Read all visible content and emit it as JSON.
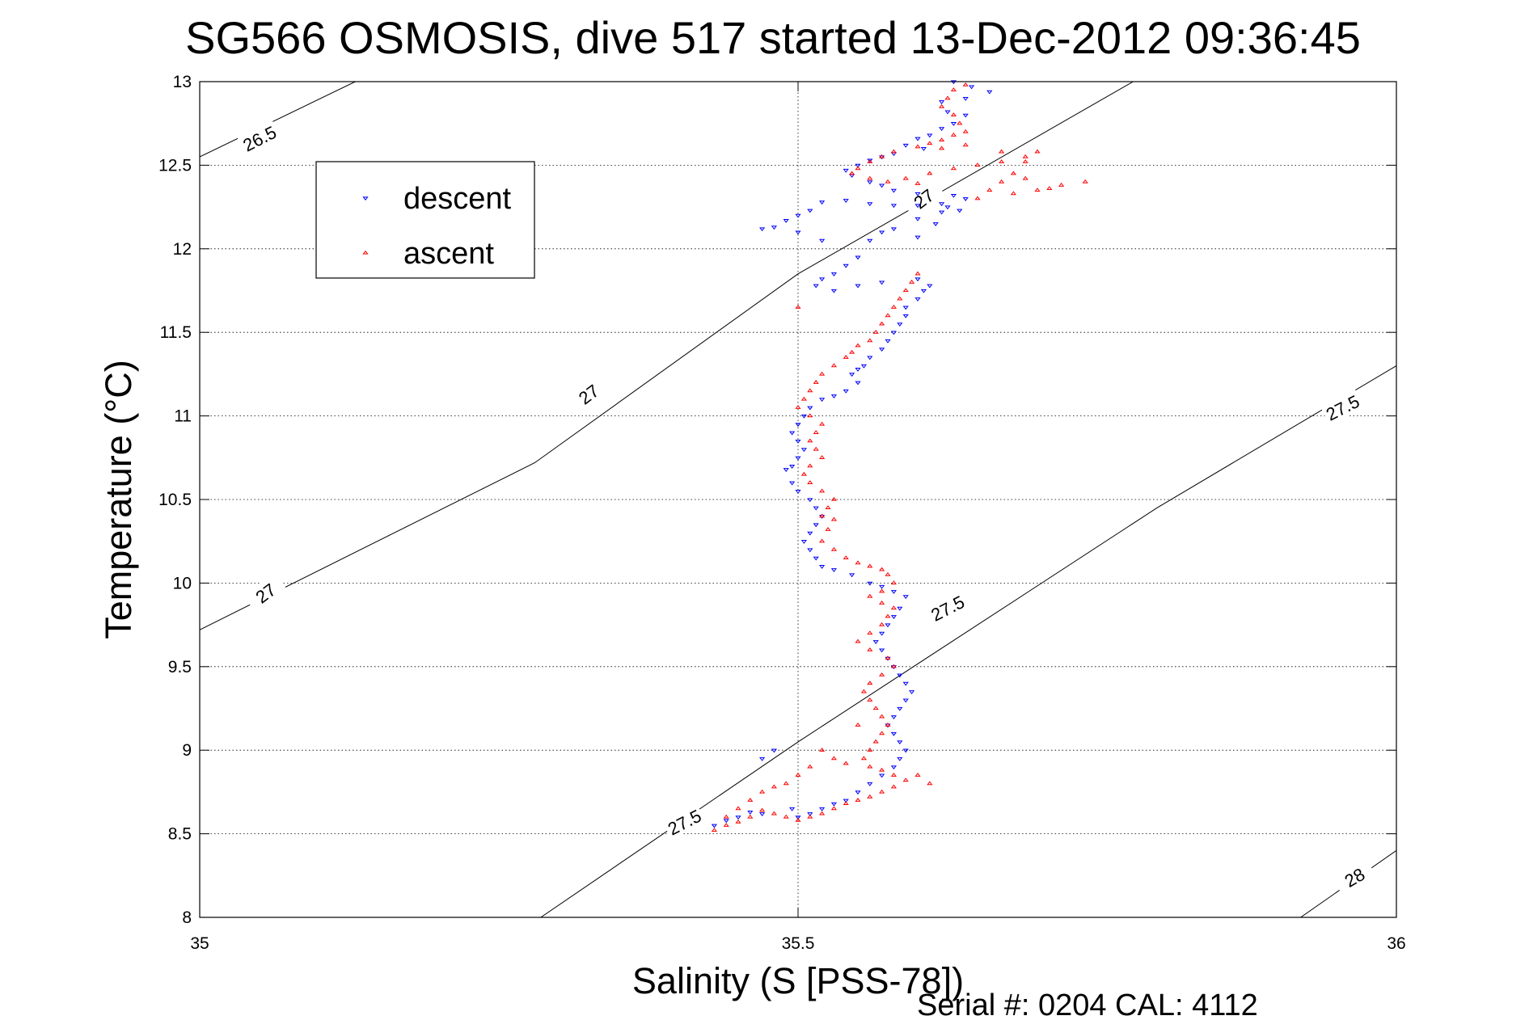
{
  "chart_data": {
    "type": "scatter",
    "title": "SG566 OSMOSIS, dive 517 started 13-Dec-2012 09:36:45",
    "xlabel": "Salinity (S [PSS-78])",
    "ylabel": "Temperature (°C)",
    "xlim": [
      35,
      36
    ],
    "ylim": [
      8,
      13
    ],
    "xticks": [
      "35",
      "35.5",
      "36"
    ],
    "yticks": [
      "8",
      "8.5",
      "9",
      "9.5",
      "10",
      "10.5",
      "11",
      "11.5",
      "12",
      "12.5",
      "13"
    ],
    "grid": true,
    "legend": {
      "placement": "top-left",
      "entries": [
        "descent",
        "ascent"
      ]
    },
    "footer": "Serial #: 0204  CAL: 4112",
    "density_contours": [
      {
        "label": "26.5",
        "points": [
          [
            35.0,
            12.55
          ],
          [
            35.13,
            13.0
          ]
        ]
      },
      {
        "label": "27",
        "points": [
          [
            35.0,
            9.72
          ],
          [
            35.28,
            10.72
          ],
          [
            35.5,
            11.85
          ],
          [
            35.78,
            13.0
          ]
        ]
      },
      {
        "label": "27.5",
        "points": [
          [
            35.285,
            8.0
          ],
          [
            35.5,
            9.05
          ],
          [
            35.8,
            10.45
          ],
          [
            36.0,
            11.3
          ]
        ]
      },
      {
        "label": "28",
        "points": [
          [
            35.92,
            8.0
          ],
          [
            36.0,
            8.4
          ]
        ]
      }
    ],
    "contour_label_positions": [
      {
        "label": "26.5",
        "x": 35.05,
        "y": 12.66,
        "angle": -27
      },
      {
        "label": "27",
        "x": 35.325,
        "y": 11.13,
        "angle": -37
      },
      {
        "label": "27",
        "x": 35.055,
        "y": 9.94,
        "angle": -37
      },
      {
        "label": "27",
        "x": 35.605,
        "y": 12.3,
        "angle": -37
      },
      {
        "label": "27.5",
        "x": 35.625,
        "y": 9.85,
        "angle": -27
      },
      {
        "label": "27.5",
        "x": 35.955,
        "y": 11.05,
        "angle": -27
      },
      {
        "label": "27.5",
        "x": 35.405,
        "y": 8.57,
        "angle": -27
      },
      {
        "label": "28",
        "x": 35.965,
        "y": 8.24,
        "angle": -30
      }
    ],
    "series": [
      {
        "name": "descent",
        "color": "#0000ff",
        "marker": "triangle-down",
        "values": [
          [
            35.63,
            13.0
          ],
          [
            35.645,
            12.97
          ],
          [
            35.66,
            12.94
          ],
          [
            35.64,
            12.9
          ],
          [
            35.62,
            12.88
          ],
          [
            35.625,
            12.82
          ],
          [
            35.64,
            12.8
          ],
          [
            35.63,
            12.75
          ],
          [
            35.62,
            12.72
          ],
          [
            35.61,
            12.68
          ],
          [
            35.6,
            12.66
          ],
          [
            35.59,
            12.62
          ],
          [
            35.605,
            12.6
          ],
          [
            35.58,
            12.57
          ],
          [
            35.57,
            12.55
          ],
          [
            35.56,
            12.53
          ],
          [
            35.55,
            12.5
          ],
          [
            35.54,
            12.47
          ],
          [
            35.545,
            12.44
          ],
          [
            35.56,
            12.4
          ],
          [
            35.57,
            12.38
          ],
          [
            35.58,
            12.35
          ],
          [
            35.6,
            12.33
          ],
          [
            35.63,
            12.32
          ],
          [
            35.64,
            12.3
          ],
          [
            35.62,
            12.27
          ],
          [
            35.6,
            12.26
          ],
          [
            35.58,
            12.26
          ],
          [
            35.56,
            12.27
          ],
          [
            35.54,
            12.29
          ],
          [
            35.52,
            12.28
          ],
          [
            35.51,
            12.23
          ],
          [
            35.5,
            12.2
          ],
          [
            35.49,
            12.17
          ],
          [
            35.48,
            12.13
          ],
          [
            35.47,
            12.12
          ],
          [
            35.5,
            12.1
          ],
          [
            35.52,
            12.05
          ],
          [
            35.6,
            12.18
          ],
          [
            35.615,
            12.15
          ],
          [
            35.62,
            12.22
          ],
          [
            35.625,
            12.25
          ],
          [
            35.635,
            12.23
          ],
          [
            35.58,
            12.12
          ],
          [
            35.57,
            12.1
          ],
          [
            35.56,
            12.05
          ],
          [
            35.55,
            11.95
          ],
          [
            35.54,
            11.9
          ],
          [
            35.53,
            11.85
          ],
          [
            35.52,
            11.82
          ],
          [
            35.515,
            11.78
          ],
          [
            35.53,
            11.75
          ],
          [
            35.55,
            11.78
          ],
          [
            35.57,
            11.8
          ],
          [
            35.6,
            11.82
          ],
          [
            35.61,
            11.78
          ],
          [
            35.605,
            11.75
          ],
          [
            35.6,
            11.7
          ],
          [
            35.59,
            11.65
          ],
          [
            35.59,
            11.6
          ],
          [
            35.585,
            11.55
          ],
          [
            35.58,
            11.5
          ],
          [
            35.575,
            11.45
          ],
          [
            35.57,
            11.4
          ],
          [
            35.56,
            11.35
          ],
          [
            35.555,
            11.3
          ],
          [
            35.55,
            11.28
          ],
          [
            35.545,
            11.25
          ],
          [
            35.55,
            11.2
          ],
          [
            35.54,
            11.15
          ],
          [
            35.53,
            11.12
          ],
          [
            35.52,
            11.1
          ],
          [
            35.51,
            11.05
          ],
          [
            35.505,
            11.0
          ],
          [
            35.5,
            10.95
          ],
          [
            35.495,
            10.9
          ],
          [
            35.5,
            10.85
          ],
          [
            35.505,
            10.8
          ],
          [
            35.5,
            10.75
          ],
          [
            35.495,
            10.7
          ],
          [
            35.49,
            10.68
          ],
          [
            35.495,
            10.6
          ],
          [
            35.5,
            10.55
          ],
          [
            35.51,
            10.5
          ],
          [
            35.515,
            10.45
          ],
          [
            35.52,
            10.4
          ],
          [
            35.515,
            10.35
          ],
          [
            35.51,
            10.3
          ],
          [
            35.505,
            10.25
          ],
          [
            35.51,
            10.2
          ],
          [
            35.515,
            10.15
          ],
          [
            35.52,
            10.1
          ],
          [
            35.53,
            10.08
          ],
          [
            35.545,
            10.05
          ],
          [
            35.56,
            10.0
          ],
          [
            35.57,
            9.98
          ],
          [
            35.58,
            9.95
          ],
          [
            35.59,
            9.92
          ],
          [
            35.585,
            9.85
          ],
          [
            35.58,
            9.8
          ],
          [
            35.575,
            9.75
          ],
          [
            35.57,
            9.7
          ],
          [
            35.565,
            9.65
          ],
          [
            35.57,
            9.6
          ],
          [
            35.575,
            9.55
          ],
          [
            35.58,
            9.5
          ],
          [
            35.585,
            9.45
          ],
          [
            35.59,
            9.4
          ],
          [
            35.595,
            9.35
          ],
          [
            35.59,
            9.3
          ],
          [
            35.585,
            9.25
          ],
          [
            35.58,
            9.2
          ],
          [
            35.575,
            9.15
          ],
          [
            35.58,
            9.1
          ],
          [
            35.585,
            9.05
          ],
          [
            35.59,
            9.0
          ],
          [
            35.585,
            8.95
          ],
          [
            35.58,
            8.9
          ],
          [
            35.57,
            8.85
          ],
          [
            35.56,
            8.8
          ],
          [
            35.55,
            8.75
          ],
          [
            35.54,
            8.7
          ],
          [
            35.53,
            8.68
          ],
          [
            35.52,
            8.65
          ],
          [
            35.51,
            8.62
          ],
          [
            35.5,
            8.6
          ],
          [
            35.495,
            8.65
          ],
          [
            35.47,
            8.62
          ],
          [
            35.45,
            8.6
          ],
          [
            35.44,
            8.58
          ],
          [
            35.43,
            8.55
          ],
          [
            35.46,
            8.63
          ],
          [
            35.48,
            9.0
          ],
          [
            35.47,
            8.95
          ],
          [
            35.6,
            12.07
          ]
        ]
      },
      {
        "name": "ascent",
        "color": "#ff0000",
        "marker": "triangle-up",
        "values": [
          [
            35.64,
            12.98
          ],
          [
            35.63,
            12.95
          ],
          [
            35.625,
            12.9
          ],
          [
            35.62,
            12.85
          ],
          [
            35.63,
            12.8
          ],
          [
            35.635,
            12.75
          ],
          [
            35.64,
            12.7
          ],
          [
            35.63,
            12.68
          ],
          [
            35.62,
            12.65
          ],
          [
            35.61,
            12.63
          ],
          [
            35.6,
            12.61
          ],
          [
            35.58,
            12.58
          ],
          [
            35.57,
            12.55
          ],
          [
            35.56,
            12.52
          ],
          [
            35.55,
            12.48
          ],
          [
            35.545,
            12.45
          ],
          [
            35.56,
            12.42
          ],
          [
            35.575,
            12.4
          ],
          [
            35.59,
            12.42
          ],
          [
            35.61,
            12.45
          ],
          [
            35.63,
            12.48
          ],
          [
            35.65,
            12.5
          ],
          [
            35.67,
            12.52
          ],
          [
            35.69,
            12.55
          ],
          [
            35.7,
            12.58
          ],
          [
            35.69,
            12.52
          ],
          [
            35.68,
            12.45
          ],
          [
            35.67,
            12.4
          ],
          [
            35.66,
            12.35
          ],
          [
            35.68,
            12.33
          ],
          [
            35.7,
            12.35
          ],
          [
            35.72,
            12.38
          ],
          [
            35.74,
            12.4
          ],
          [
            35.71,
            12.36
          ],
          [
            35.69,
            12.42
          ],
          [
            35.62,
            12.6
          ],
          [
            35.64,
            12.62
          ],
          [
            35.67,
            12.58
          ],
          [
            35.6,
            11.85
          ],
          [
            35.595,
            11.8
          ],
          [
            35.59,
            11.75
          ],
          [
            35.585,
            11.7
          ],
          [
            35.58,
            11.65
          ],
          [
            35.575,
            11.6
          ],
          [
            35.57,
            11.55
          ],
          [
            35.565,
            11.5
          ],
          [
            35.56,
            11.45
          ],
          [
            35.55,
            11.42
          ],
          [
            35.545,
            11.38
          ],
          [
            35.54,
            11.35
          ],
          [
            35.53,
            11.3
          ],
          [
            35.52,
            11.25
          ],
          [
            35.515,
            11.2
          ],
          [
            35.51,
            11.15
          ],
          [
            35.505,
            11.1
          ],
          [
            35.5,
            11.05
          ],
          [
            35.51,
            11.0
          ],
          [
            35.52,
            10.95
          ],
          [
            35.515,
            10.9
          ],
          [
            35.51,
            10.85
          ],
          [
            35.515,
            10.8
          ],
          [
            35.52,
            10.75
          ],
          [
            35.51,
            10.7
          ],
          [
            35.505,
            10.65
          ],
          [
            35.51,
            10.6
          ],
          [
            35.52,
            10.55
          ],
          [
            35.53,
            10.5
          ],
          [
            35.525,
            10.45
          ],
          [
            35.52,
            10.4
          ],
          [
            35.53,
            10.38
          ],
          [
            35.525,
            10.32
          ],
          [
            35.52,
            10.25
          ],
          [
            35.53,
            10.2
          ],
          [
            35.54,
            10.15
          ],
          [
            35.55,
            10.12
          ],
          [
            35.56,
            10.1
          ],
          [
            35.57,
            10.08
          ],
          [
            35.575,
            10.05
          ],
          [
            35.58,
            10.0
          ],
          [
            35.57,
            9.95
          ],
          [
            35.56,
            9.92
          ],
          [
            35.57,
            9.88
          ],
          [
            35.58,
            9.85
          ],
          [
            35.575,
            9.8
          ],
          [
            35.57,
            9.75
          ],
          [
            35.56,
            9.7
          ],
          [
            35.55,
            9.65
          ],
          [
            35.56,
            9.6
          ],
          [
            35.575,
            9.55
          ],
          [
            35.58,
            9.5
          ],
          [
            35.57,
            9.45
          ],
          [
            35.56,
            9.4
          ],
          [
            35.555,
            9.35
          ],
          [
            35.56,
            9.3
          ],
          [
            35.565,
            9.25
          ],
          [
            35.57,
            9.2
          ],
          [
            35.575,
            9.15
          ],
          [
            35.57,
            9.1
          ],
          [
            35.565,
            9.05
          ],
          [
            35.56,
            9.0
          ],
          [
            35.555,
            8.95
          ],
          [
            35.56,
            8.9
          ],
          [
            35.57,
            8.88
          ],
          [
            35.58,
            8.85
          ],
          [
            35.59,
            8.82
          ],
          [
            35.58,
            8.78
          ],
          [
            35.57,
            8.75
          ],
          [
            35.56,
            8.72
          ],
          [
            35.55,
            8.7
          ],
          [
            35.54,
            8.68
          ],
          [
            35.53,
            8.65
          ],
          [
            35.52,
            8.62
          ],
          [
            35.51,
            8.6
          ],
          [
            35.5,
            8.58
          ],
          [
            35.49,
            8.6
          ],
          [
            35.48,
            8.62
          ],
          [
            35.47,
            8.64
          ],
          [
            35.46,
            8.6
          ],
          [
            35.45,
            8.57
          ],
          [
            35.44,
            8.55
          ],
          [
            35.43,
            8.52
          ],
          [
            35.44,
            8.6
          ],
          [
            35.45,
            8.65
          ],
          [
            35.46,
            8.7
          ],
          [
            35.47,
            8.75
          ],
          [
            35.48,
            8.78
          ],
          [
            35.49,
            8.8
          ],
          [
            35.5,
            8.85
          ],
          [
            35.51,
            8.9
          ],
          [
            35.52,
            9.0
          ],
          [
            35.53,
            8.95
          ],
          [
            35.54,
            8.92
          ],
          [
            35.6,
            8.85
          ],
          [
            35.61,
            8.8
          ],
          [
            35.55,
            9.15
          ],
          [
            35.6,
            12.39
          ],
          [
            35.65,
            12.3
          ],
          [
            35.5,
            11.65
          ]
        ]
      }
    ]
  }
}
